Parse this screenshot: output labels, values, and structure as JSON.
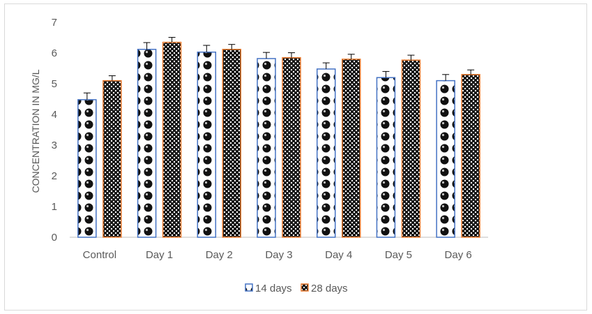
{
  "chart_data": {
    "type": "bar",
    "title": "",
    "xlabel": "",
    "ylabel": "CONCENTRATION IN MG/L",
    "ylim": [
      0,
      7
    ],
    "yticks": [
      "0",
      "1",
      "2",
      "3",
      "4",
      "5",
      "6",
      "7"
    ],
    "categories": [
      "Control",
      "Day 1",
      "Day 2",
      "Day 3",
      "Day 4",
      "Day 5",
      "Day 6"
    ],
    "series": [
      {
        "name": "14 days",
        "values": [
          4.48,
          6.12,
          6.03,
          5.82,
          5.48,
          5.2,
          5.1
        ],
        "errors": [
          0.22,
          0.22,
          0.22,
          0.2,
          0.2,
          0.2,
          0.2
        ],
        "color": "#4472c4"
      },
      {
        "name": "28 days",
        "values": [
          5.1,
          6.35,
          6.12,
          5.85,
          5.8,
          5.77,
          5.3
        ],
        "errors": [
          0.16,
          0.16,
          0.16,
          0.16,
          0.16,
          0.16,
          0.15
        ],
        "color": "#ed7d31"
      }
    ],
    "grid": false,
    "legend": "bottom"
  }
}
